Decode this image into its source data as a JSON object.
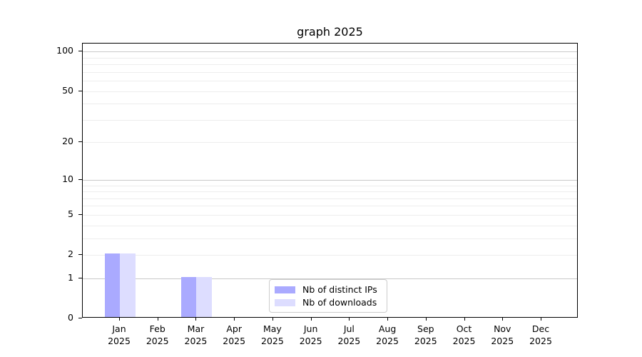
{
  "chart_data": {
    "type": "bar",
    "title": "graph 2025",
    "categories": [
      "Jan",
      "Feb",
      "Mar",
      "Apr",
      "May",
      "Jun",
      "Jul",
      "Aug",
      "Sep",
      "Oct",
      "Nov",
      "Dec"
    ],
    "category_year": "2025",
    "series": [
      {
        "name": "Nb of distinct IPs",
        "color": "#aaaaff",
        "values": [
          2,
          0,
          1,
          0,
          0,
          0,
          0,
          0,
          0,
          0,
          0,
          0
        ]
      },
      {
        "name": "Nb of downloads",
        "color": "#ddddff",
        "values": [
          2,
          0,
          1,
          0,
          0,
          0,
          0,
          0,
          0,
          0,
          0,
          0
        ]
      }
    ],
    "y_scale": "log1p",
    "ylim": [
      0,
      115
    ],
    "y_major_ticks": [
      0,
      1,
      2,
      5,
      10,
      20,
      50,
      100
    ],
    "y_minor_ticks": [
      3,
      4,
      6,
      7,
      8,
      9,
      30,
      40,
      60,
      70,
      80,
      90
    ],
    "y_decade_gridlines": [
      1,
      10,
      100
    ],
    "xlabel": "",
    "ylabel": "",
    "grid": true,
    "legend_position": "lower center",
    "colors": {
      "grid_decade": "#c9c9c9",
      "grid_minor": "#ededed",
      "axis": "#000000",
      "background": "#ffffff",
      "text": "#000000"
    }
  }
}
